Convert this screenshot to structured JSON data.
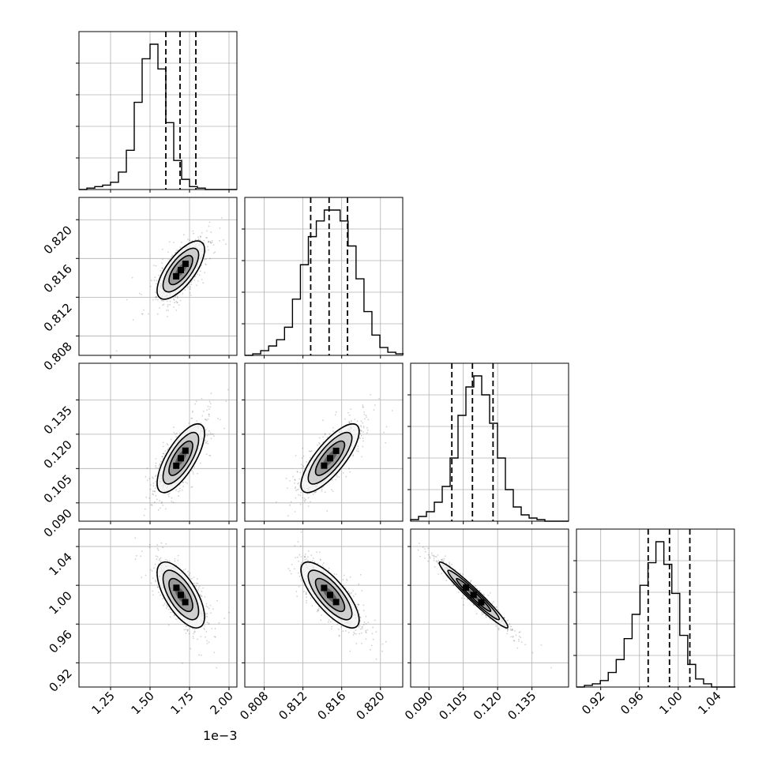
{
  "chart_data": {
    "type": "corner",
    "title": "",
    "offset_label": "1e−3",
    "grid": true,
    "parameters": [
      {
        "name": "",
        "range": [
          1.05,
          2.05
        ],
        "ticks": [
          1.25,
          1.5,
          1.75,
          2.0
        ],
        "tick_labels": [
          "1.25",
          "1.50",
          "1.75",
          "2.00"
        ],
        "quantiles": [
          1.6,
          1.69,
          1.79
        ],
        "hist_edges_start": 1.05,
        "hist_bin_width": 0.05,
        "hist_counts": [
          0,
          0.01,
          0.02,
          0.03,
          0.05,
          0.12,
          0.27,
          0.6,
          0.9,
          1.0,
          0.83,
          0.46,
          0.2,
          0.07,
          0.02,
          0.01,
          0.0,
          0,
          0,
          0
        ]
      },
      {
        "name": "",
        "range": [
          0.806,
          0.8223
        ],
        "ticks": [
          0.808,
          0.812,
          0.816,
          0.82
        ],
        "tick_labels": [
          "0.808",
          "0.812",
          "0.816",
          "0.820"
        ],
        "quantiles": [
          0.8128,
          0.8147,
          0.8166
        ],
        "hist_edges_start": 0.806,
        "hist_bin_width": 0.00082,
        "hist_counts": [
          0,
          0.01,
          0.03,
          0.06,
          0.1,
          0.18,
          0.36,
          0.58,
          0.76,
          0.86,
          0.93,
          0.93,
          0.86,
          0.7,
          0.49,
          0.28,
          0.13,
          0.05,
          0.02,
          0.01
        ]
      },
      {
        "name": "",
        "range": [
          0.082,
          0.151
        ],
        "ticks": [
          0.09,
          0.105,
          0.12,
          0.135
        ],
        "tick_labels": [
          "0.090",
          "0.105",
          "0.120",
          "0.135"
        ],
        "quantiles": [
          0.1,
          0.109,
          0.118
        ],
        "hist_edges_start": 0.082,
        "hist_bin_width": 0.00345,
        "hist_counts": [
          0.01,
          0.03,
          0.06,
          0.12,
          0.22,
          0.4,
          0.67,
          0.85,
          0.92,
          0.8,
          0.62,
          0.4,
          0.2,
          0.09,
          0.04,
          0.02,
          0.01,
          0,
          0,
          0
        ]
      },
      {
        "name": "",
        "range": [
          0.895,
          1.058
        ],
        "ticks": [
          0.92,
          0.96,
          1.0,
          1.04
        ],
        "tick_labels": [
          "0.92",
          "0.96",
          "1.00",
          "1.04"
        ],
        "quantiles": [
          0.969,
          0.991,
          1.012
        ],
        "hist_edges_start": 0.895,
        "hist_bin_width": 0.0082,
        "hist_counts": [
          0,
          0.01,
          0.02,
          0.04,
          0.09,
          0.17,
          0.3,
          0.45,
          0.63,
          0.77,
          0.9,
          0.76,
          0.58,
          0.32,
          0.14,
          0.05,
          0.02,
          0,
          0,
          0
        ]
      }
    ],
    "correlations": [
      [
        1,
        0.7,
        0.72,
        -0.66
      ],
      [
        0.7,
        1,
        0.78,
        -0.76
      ],
      [
        0.72,
        0.78,
        1,
        -0.97
      ],
      [
        -0.66,
        -0.76,
        -0.97,
        1
      ]
    ],
    "sigmas": [
      0.075,
      0.0015,
      0.0075,
      0.017
    ],
    "means": [
      1.695,
      0.8148,
      0.1095,
      0.99
    ]
  }
}
